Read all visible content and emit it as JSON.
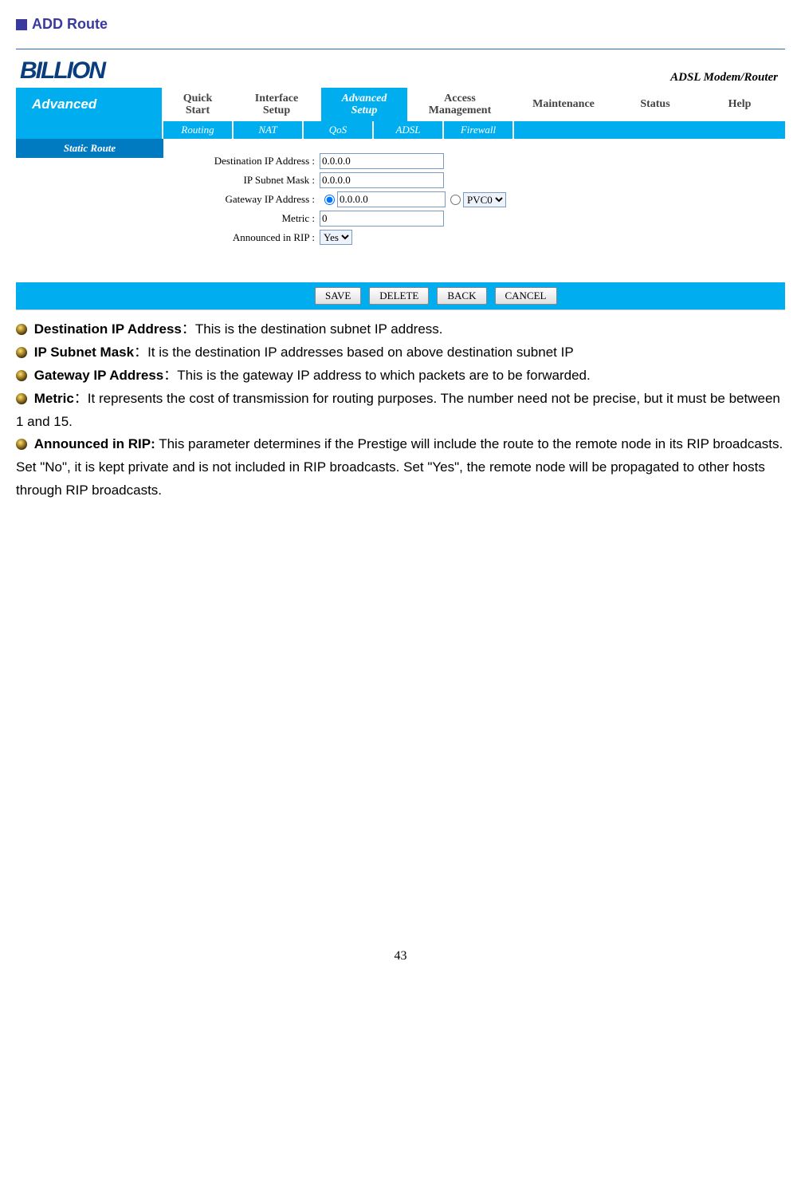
{
  "heading": "ADD Route",
  "router": {
    "logo_text": "BILLION",
    "device_label": "ADSL Modem/Router",
    "section_label": "Advanced",
    "tabs": [
      {
        "label": "Quick\nStart",
        "active": false
      },
      {
        "label": "Interface\nSetup",
        "active": false
      },
      {
        "label": "Advanced\nSetup",
        "active": true
      },
      {
        "label": "Access\nManagement",
        "active": false
      },
      {
        "label": "Maintenance",
        "active": false
      },
      {
        "label": "Status",
        "active": false
      },
      {
        "label": "Help",
        "active": false
      }
    ],
    "subtabs": [
      "Routing",
      "NAT",
      "QoS",
      "ADSL",
      "Firewall"
    ],
    "side_label": "Static Route",
    "form": {
      "dest_ip_label": "Destination IP Address :",
      "dest_ip_value": "0.0.0.0",
      "subnet_label": "IP Subnet Mask :",
      "subnet_value": "0.0.0.0",
      "gateway_label": "Gateway IP Address :",
      "gateway_value": "0.0.0.0",
      "pvc_selected": "PVC0",
      "metric_label": "Metric :",
      "metric_value": "0",
      "rip_label": "Announced in RIP :",
      "rip_selected": "Yes"
    },
    "buttons": {
      "save": "SAVE",
      "delete": "DELETE",
      "back": "BACK",
      "cancel": "CANCEL"
    }
  },
  "desc": {
    "dest_ip_term": "Destination IP Address",
    "dest_ip_text": "：This is the destination subnet IP address.",
    "subnet_term": "IP Subnet Mask",
    "subnet_text": "：It is the destination IP addresses based on above destination subnet IP",
    "gateway_term": "Gateway IP Address",
    "gateway_text": "：This is the gateway IP address to which packets are to be forwarded.",
    "metric_term": "Metric",
    "metric_text": "：It represents the cost of transmission for routing purposes. The number need not be precise, but it must be between 1 and 15.",
    "rip_term": "Announced in RIP:",
    "rip_text": " This parameter determines if the Prestige will include the route to the remote node in its RIP broadcasts. Set \"No\", it is kept private and is not included in RIP broadcasts. Set \"Yes\", the remote node will be propagated to other hosts through RIP broadcasts."
  },
  "page_number": "43"
}
